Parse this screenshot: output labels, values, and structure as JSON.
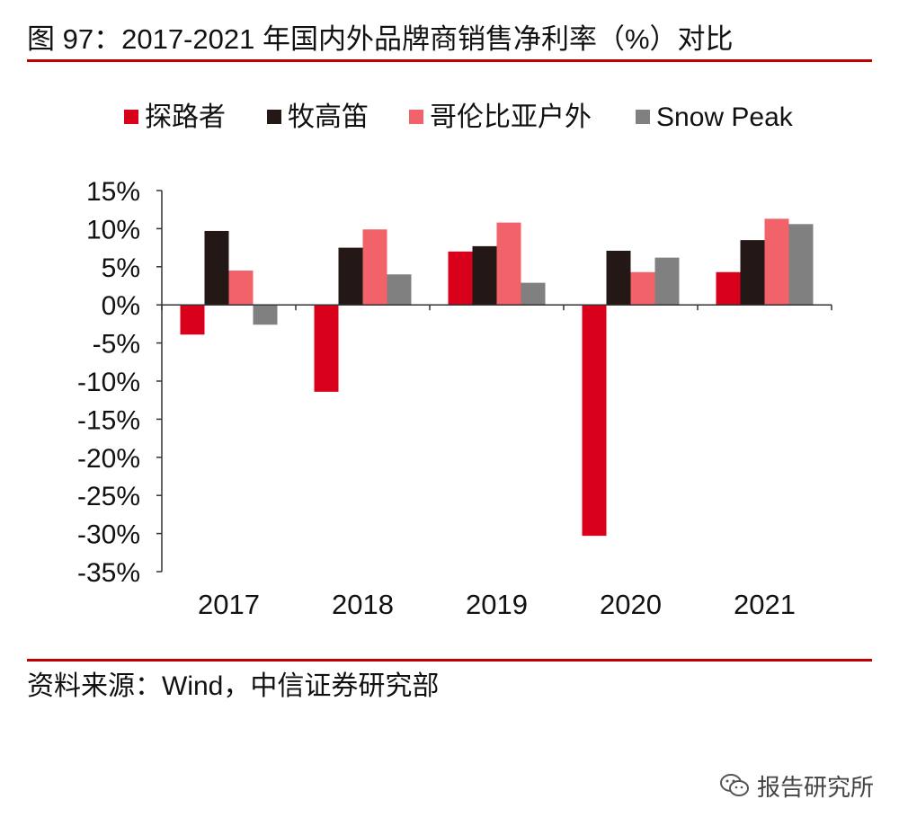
{
  "title": "图 97：2017-2021 年国内外品牌商销售净利率（%）对比",
  "source": "资料来源：Wind，中信证券研究部",
  "watermark": {
    "text": "报告研究所",
    "icon": "wechat-icon"
  },
  "chart_data": {
    "type": "bar",
    "categories": [
      "2017",
      "2018",
      "2019",
      "2020",
      "2021"
    ],
    "series": [
      {
        "name": "探路者",
        "color": "#d9001b",
        "values": [
          -3.9,
          -11.4,
          7.0,
          -30.3,
          4.3
        ]
      },
      {
        "name": "牧高笛",
        "color": "#231815",
        "values": [
          9.7,
          7.5,
          7.7,
          7.1,
          8.5
        ]
      },
      {
        "name": "哥伦比亚户外",
        "color": "#f2626b",
        "values": [
          4.5,
          9.9,
          10.8,
          4.3,
          11.3
        ]
      },
      {
        "name": "Snow Peak",
        "color": "#808080",
        "values": [
          -2.6,
          4.0,
          2.9,
          6.2,
          10.6
        ]
      }
    ],
    "ylim": [
      -35,
      15
    ],
    "yticks": [
      15,
      10,
      5,
      0,
      -5,
      -10,
      -15,
      -20,
      -25,
      -30,
      -35
    ],
    "y_tick_format": "percent",
    "legend_position": "top",
    "grid": false
  }
}
